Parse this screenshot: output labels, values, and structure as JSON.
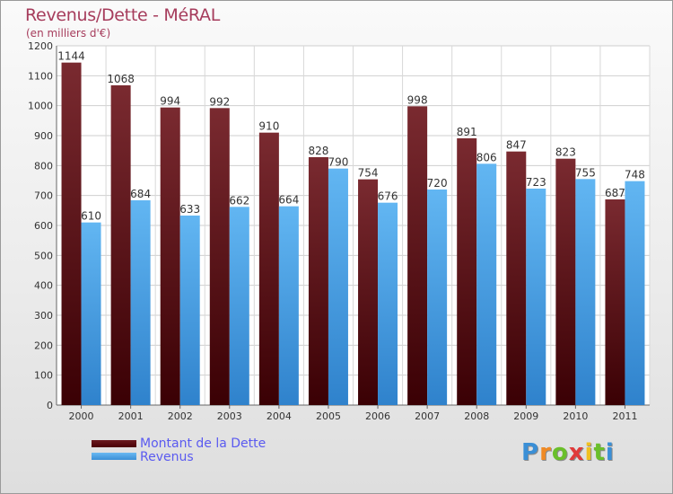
{
  "title": "Revenus/Dette - MéRAL",
  "subtitle": "(en milliers d'€)",
  "logo": "Proxiti",
  "colors": {
    "debt": "#5a0a10",
    "revenue": "#4aa4e6",
    "title": "#a63c5c",
    "legend_text": "#5a5af0"
  },
  "chart_data": {
    "type": "bar",
    "title": "Revenus/Dette - MéRAL",
    "subtitle": "(en milliers d'€)",
    "categories": [
      "2000",
      "2001",
      "2002",
      "2003",
      "2004",
      "2005",
      "2006",
      "2007",
      "2008",
      "2009",
      "2010",
      "2011"
    ],
    "series": [
      {
        "name": "Montant de la Dette",
        "values": [
          1144,
          1068,
          994,
          992,
          910,
          828,
          754,
          998,
          891,
          847,
          823,
          687
        ]
      },
      {
        "name": "Revenus",
        "values": [
          610,
          684,
          633,
          662,
          664,
          790,
          676,
          720,
          806,
          723,
          755,
          748
        ]
      }
    ],
    "ylim": [
      0,
      1200
    ],
    "yticks": [
      0,
      100,
      200,
      300,
      400,
      500,
      600,
      700,
      800,
      900,
      1000,
      1100,
      1200
    ],
    "grid": true,
    "legend": "bottom-left"
  }
}
